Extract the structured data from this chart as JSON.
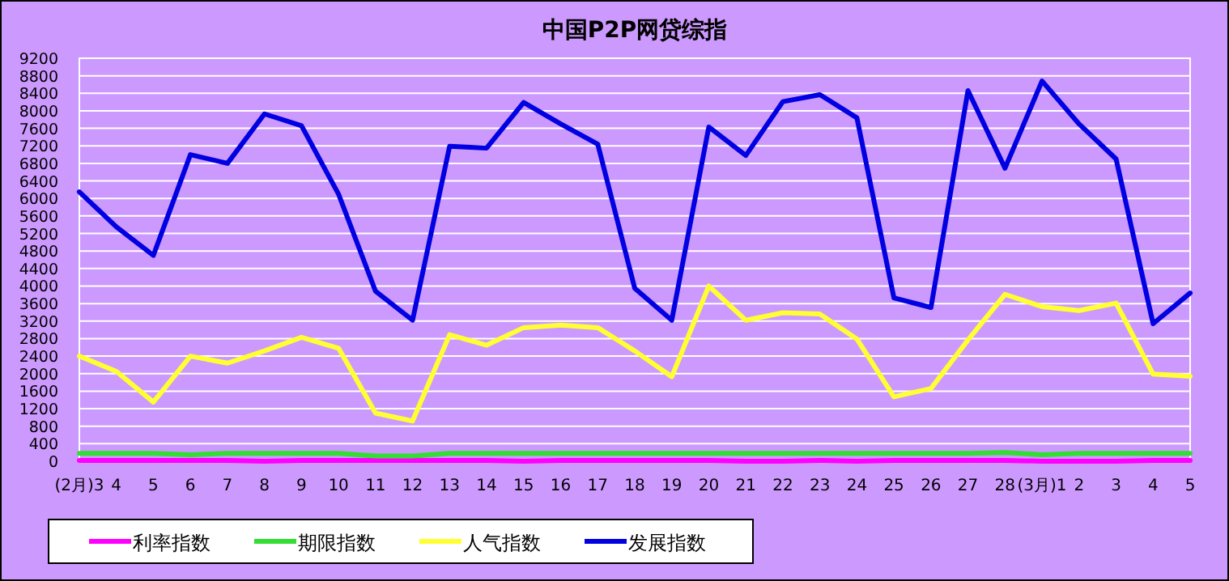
{
  "chart_data": {
    "type": "line",
    "title": "中国P2P网贷综指",
    "categories": [
      "(2月)3",
      "4",
      "5",
      "6",
      "7",
      "8",
      "9",
      "10",
      "11",
      "12",
      "13",
      "14",
      "15",
      "16",
      "17",
      "18",
      "19",
      "20",
      "21",
      "22",
      "23",
      "24",
      "25",
      "26",
      "27",
      "28",
      "(3月)1",
      "2",
      "3",
      "4",
      "5"
    ],
    "series": [
      {
        "name": "利率指数",
        "color": "#ff00ff",
        "values": [
          20,
          20,
          20,
          20,
          20,
          0,
          20,
          20,
          20,
          20,
          20,
          20,
          0,
          20,
          20,
          20,
          20,
          20,
          0,
          0,
          20,
          0,
          20,
          20,
          20,
          20,
          0,
          0,
          0,
          20,
          20
        ]
      },
      {
        "name": "期限指数",
        "color": "#33dd33",
        "values": [
          180,
          180,
          180,
          150,
          180,
          180,
          180,
          180,
          120,
          120,
          180,
          180,
          180,
          180,
          180,
          180,
          180,
          180,
          180,
          180,
          180,
          180,
          180,
          180,
          180,
          200,
          150,
          180,
          180,
          180,
          180
        ]
      },
      {
        "name": "人气指数",
        "color": "#ffff33",
        "values": [
          2400,
          2050,
          1350,
          2400,
          2240,
          2520,
          2830,
          2580,
          1100,
          920,
          2890,
          2650,
          3050,
          3110,
          3050,
          2520,
          1930,
          4000,
          3220,
          3390,
          3360,
          2790,
          1470,
          1660,
          2770,
          3810,
          3530,
          3440,
          3610,
          1990,
          1940
        ]
      },
      {
        "name": "发展指数",
        "color": "#0000e0",
        "values": [
          6150,
          5350,
          4700,
          7000,
          6800,
          7930,
          7660,
          6100,
          3880,
          3220,
          7190,
          7150,
          8190,
          7700,
          7240,
          3950,
          3220,
          7630,
          6980,
          8210,
          8370,
          7840,
          3730,
          3510,
          8460,
          6690,
          8680,
          7700,
          6900,
          3140,
          3840
        ]
      }
    ],
    "ylim": [
      0,
      9200
    ],
    "yticks": [
      0,
      400,
      800,
      1200,
      1600,
      2000,
      2400,
      2800,
      3200,
      3600,
      4000,
      4400,
      4800,
      5200,
      5600,
      6000,
      6400,
      6800,
      7200,
      7600,
      8000,
      8400,
      8800,
      9200
    ],
    "grid": "y",
    "legend": "bottom",
    "marker": "none",
    "line_style": "solid"
  }
}
